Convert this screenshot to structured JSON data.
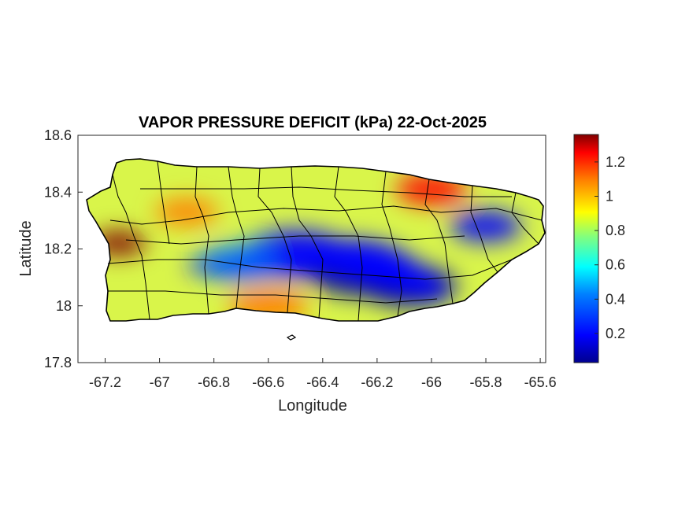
{
  "figure": {
    "title": "VAPOR PRESSURE DEFICIT (kPa) 22-Oct-2025",
    "xlabel": "Longitude",
    "ylabel": "Latitude"
  },
  "map": {
    "region": "Puerto Rico",
    "xlim": [
      -67.3,
      -65.58
    ],
    "ylim": [
      17.8,
      18.6
    ],
    "xticks": [
      -67.2,
      -67,
      -66.8,
      -66.6,
      -66.4,
      -66.2,
      -66,
      -65.8,
      -65.6
    ],
    "yticks": [
      17.8,
      18,
      18.2,
      18.4,
      18.6
    ],
    "xtick_labels": [
      "-67.2",
      "-67",
      "-66.8",
      "-66.6",
      "-66.4",
      "-66.2",
      "-66",
      "-65.8",
      "-65.6"
    ],
    "ytick_labels": [
      "17.8",
      "18",
      "18.2",
      "18.4",
      "18.6"
    ],
    "field_blobs": [
      {
        "lon": -66.5,
        "lat": 18.18,
        "value": 0.15
      },
      {
        "lon": -66.25,
        "lat": 18.12,
        "value": 0.1
      },
      {
        "lon": -66.08,
        "lat": 18.07,
        "value": 0.05
      },
      {
        "lon": -65.8,
        "lat": 18.28,
        "value": 0.12
      },
      {
        "lon": -66.7,
        "lat": 18.15,
        "value": 0.4
      },
      {
        "lon": -67.15,
        "lat": 18.22,
        "value": 1.3
      },
      {
        "lon": -66.0,
        "lat": 18.41,
        "value": 1.25
      },
      {
        "lon": -66.9,
        "lat": 18.33,
        "value": 1.05
      },
      {
        "lon": -66.6,
        "lat": 18.0,
        "value": 1.0
      }
    ]
  },
  "colorbar": {
    "colormap": "jet",
    "range": [
      0.03,
      1.36
    ],
    "ticks": [
      0.2,
      0.4,
      0.6,
      0.8,
      1.0,
      1.2
    ],
    "tick_labels": [
      "0.2",
      "0.4",
      "0.6",
      "0.8",
      "1",
      "1.2"
    ],
    "colors": [
      "#00008f",
      "#0000ff",
      "#0080ff",
      "#00ffff",
      "#80ff80",
      "#ffff00",
      "#ff8000",
      "#ff0000",
      "#800000"
    ]
  }
}
